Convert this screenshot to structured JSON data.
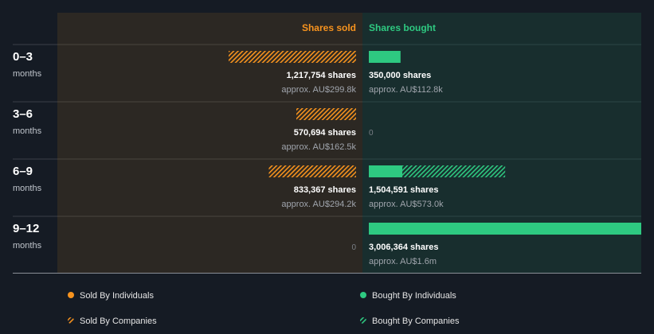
{
  "chart_data": {
    "type": "bar",
    "headers": {
      "sold": "Shares sold",
      "bought": "Shares bought"
    },
    "unit_label": "months",
    "rows": [
      {
        "period": "0–3",
        "sold_individuals": 1217754,
        "sold_companies": 0,
        "sold_shares_label": "1,217,754 shares",
        "sold_value_label": "approx. AU$299.8k",
        "bought_individuals": 350000,
        "bought_companies": 0,
        "bought_shares_label": "350,000 shares",
        "bought_value_label": "approx. AU$112.8k"
      },
      {
        "period": "3–6",
        "sold_individuals": 570694,
        "sold_companies": 0,
        "sold_shares_label": "570,694 shares",
        "sold_value_label": "approx. AU$162.5k",
        "bought_individuals": 0,
        "bought_companies": 0,
        "bought_shares_label": "0",
        "bought_value_label": ""
      },
      {
        "period": "6–9",
        "sold_individuals": 833367,
        "sold_companies": 0,
        "sold_shares_label": "833,367 shares",
        "sold_value_label": "approx. AU$294.2k",
        "bought_individuals": 370000,
        "bought_companies": 1134591,
        "bought_shares_label": "1,504,591 shares",
        "bought_value_label": "approx. AU$573.0k"
      },
      {
        "period": "9–12",
        "sold_individuals": 0,
        "sold_companies": 0,
        "sold_shares_label": "0",
        "sold_value_label": "",
        "bought_individuals": 3006364,
        "bought_companies": 0,
        "bought_shares_label": "3,006,364 shares",
        "bought_value_label": "approx. AU$1.6m"
      }
    ],
    "legend": [
      {
        "label": "Sold By Individuals",
        "pattern": "solid",
        "color": "#f7931e"
      },
      {
        "label": "Bought By Individuals",
        "pattern": "solid",
        "color": "#2ec981"
      },
      {
        "label": "Sold By Companies",
        "pattern": "hatched",
        "color": "#f7931e"
      },
      {
        "label": "Bought By Companies",
        "pattern": "hatched",
        "color": "#2ec981"
      }
    ],
    "colors": {
      "sold": "#f7931e",
      "bought": "#2ec981",
      "sold_panel": "#2c2823",
      "bought_panel": "#182e2e",
      "background": "#151b24"
    }
  }
}
